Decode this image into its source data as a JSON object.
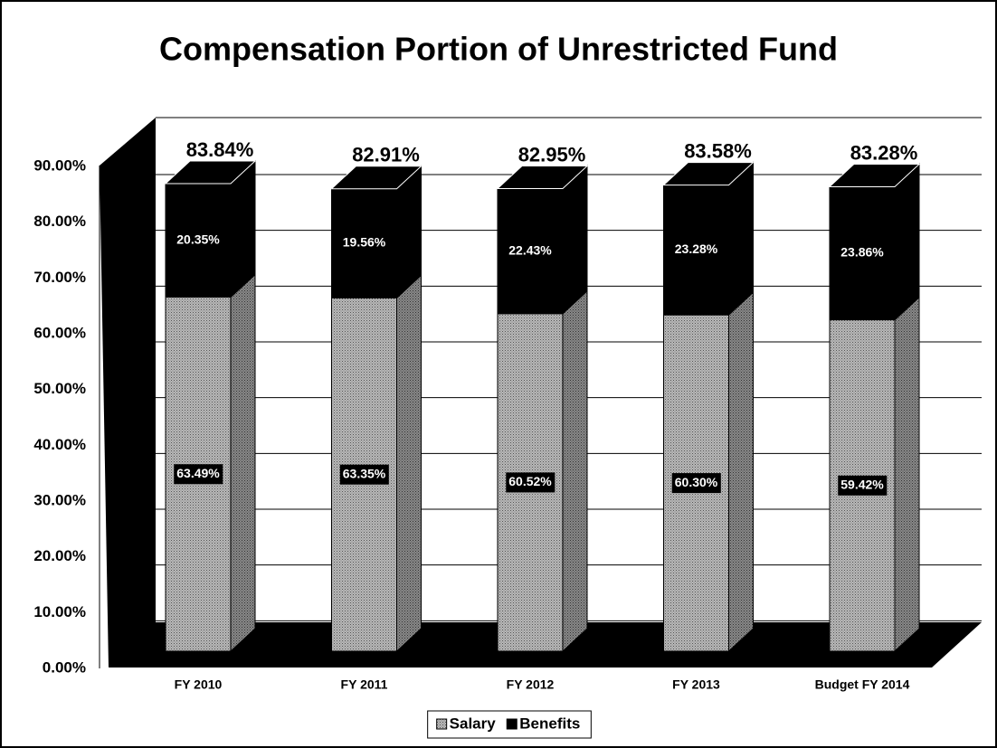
{
  "chart_data": {
    "type": "bar",
    "stacked": true,
    "title": "Compensation Portion of Unrestricted Fund",
    "categories": [
      "FY 2010",
      "FY 2011",
      "FY 2012",
      "FY 2013",
      "Budget FY 2014"
    ],
    "series": [
      {
        "name": "Salary",
        "color": "#9a9a9a",
        "values": [
          63.49,
          63.35,
          60.52,
          60.3,
          59.42
        ],
        "value_labels": [
          "63.49%",
          "63.35%",
          "60.52%",
          "60.30%",
          "59.42%"
        ]
      },
      {
        "name": "Benefits",
        "color": "#000000",
        "values": [
          20.35,
          19.56,
          22.43,
          23.28,
          23.86
        ],
        "value_labels": [
          "20.35%",
          "19.56%",
          "22.43%",
          "23.28%",
          "23.86%"
        ]
      }
    ],
    "total_labels": [
      "83.84%",
      "82.91%",
      "82.95%",
      "83.58%",
      "83.28%"
    ],
    "ylim": [
      0,
      90
    ],
    "yticks": [
      {
        "value": 0,
        "label": "0.00%"
      },
      {
        "value": 10,
        "label": "10.00%"
      },
      {
        "value": 20,
        "label": "20.00%"
      },
      {
        "value": 30,
        "label": "30.00%"
      },
      {
        "value": 40,
        "label": "40.00%"
      },
      {
        "value": 50,
        "label": "50.00%"
      },
      {
        "value": 60,
        "label": "60.00%"
      },
      {
        "value": 70,
        "label": "70.00%"
      },
      {
        "value": 80,
        "label": "80.00%"
      },
      {
        "value": 90,
        "label": "90.00%"
      }
    ],
    "grid": true,
    "legend": "bottom"
  }
}
